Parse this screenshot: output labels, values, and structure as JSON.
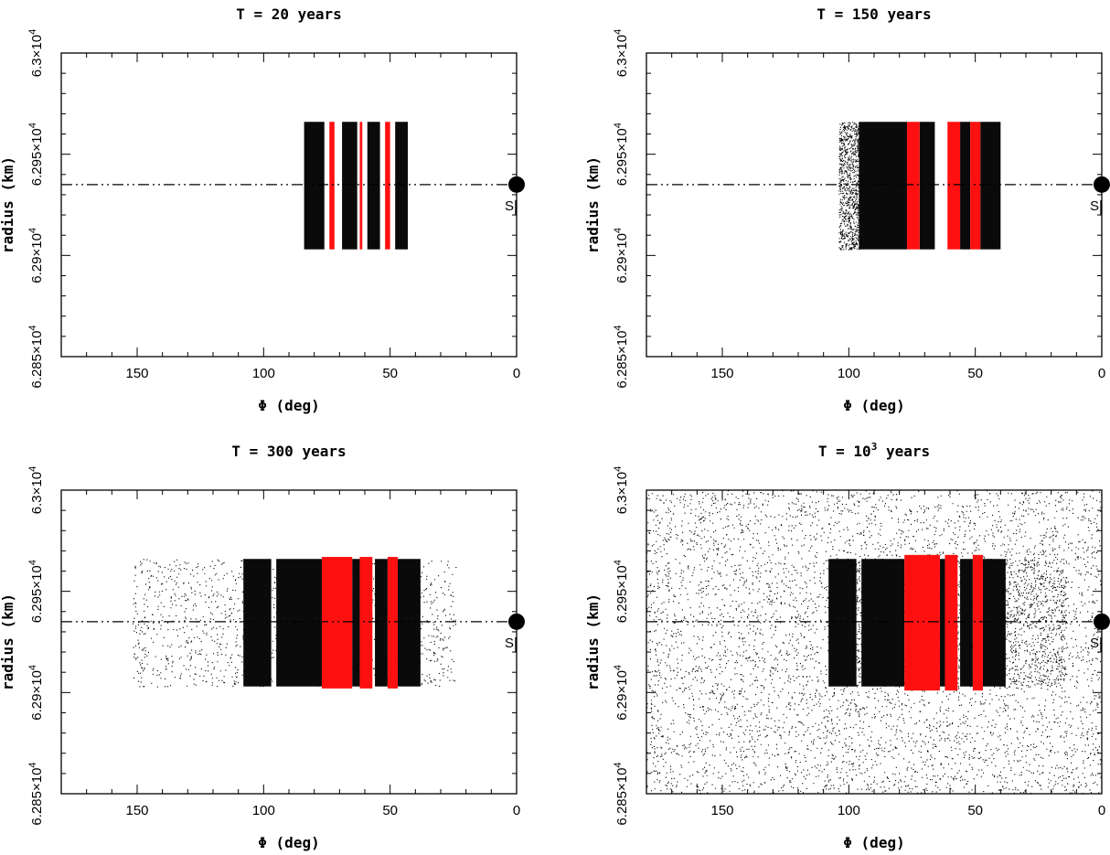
{
  "chart_data": [
    {
      "type": "scatter",
      "title": "T = 20 years",
      "title_base": "",
      "title_exp": "",
      "xlabel": "Φ (deg)",
      "ylabel": "radius (km)",
      "xlim": [
        180,
        0
      ],
      "x_reversed": true,
      "ylim": [
        62850,
        63000
      ],
      "xticks": [
        "150",
        "100",
        "50",
        "0"
      ],
      "xtick_values": [
        150,
        100,
        50,
        0
      ],
      "yticks": [
        {
          "value": 62850,
          "mant": "6.285",
          "exp": "4"
        },
        {
          "value": 62900,
          "mant": "6.29",
          "exp": "4"
        },
        {
          "value": 62950,
          "mant": "6.295",
          "exp": "4"
        },
        {
          "value": 63000,
          "mant": "6.3",
          "exp": "4"
        }
      ],
      "reference_line_radius": 62935,
      "satellite": {
        "label": "S",
        "phi": 0,
        "radius": 62935
      },
      "black_bands": [
        [
          84,
          76
        ],
        [
          69,
          63
        ],
        [
          59,
          54
        ],
        [
          48,
          43
        ]
      ],
      "red_bands": [
        [
          74,
          72
        ],
        [
          62,
          61
        ],
        [
          52,
          50
        ]
      ],
      "band_radius": [
        62903,
        62966
      ],
      "halo_density": 0,
      "background_density": 0
    },
    {
      "type": "scatter",
      "title": "T = 150 years",
      "title_base": "",
      "title_exp": "",
      "xlabel": "Φ (deg)",
      "ylabel": "radius (km)",
      "xlim": [
        180,
        0
      ],
      "x_reversed": true,
      "ylim": [
        62850,
        63000
      ],
      "xticks": [
        "150",
        "100",
        "50",
        "0"
      ],
      "xtick_values": [
        150,
        100,
        50,
        0
      ],
      "yticks": [
        {
          "value": 62850,
          "mant": "6.285",
          "exp": "4"
        },
        {
          "value": 62900,
          "mant": "6.29",
          "exp": "4"
        },
        {
          "value": 62950,
          "mant": "6.295",
          "exp": "4"
        },
        {
          "value": 63000,
          "mant": "6.3",
          "exp": "4"
        }
      ],
      "reference_line_radius": 62935,
      "satellite": {
        "label": "S",
        "phi": 0,
        "radius": 62935
      },
      "black_bands": [
        [
          96,
          77
        ],
        [
          72,
          66
        ],
        [
          56,
          52
        ],
        [
          48,
          40
        ]
      ],
      "red_bands": [
        [
          77,
          72
        ],
        [
          61,
          56
        ],
        [
          52,
          48
        ]
      ],
      "band_radius": [
        62903,
        62966
      ],
      "halo": [
        104,
        96
      ],
      "halo_density": 900,
      "background_density": 0
    },
    {
      "type": "scatter",
      "title": "T = 300 years",
      "title_base": "",
      "title_exp": "",
      "xlabel": "Φ (deg)",
      "ylabel": "radius (km)",
      "xlim": [
        180,
        0
      ],
      "x_reversed": true,
      "ylim": [
        62850,
        63000
      ],
      "xticks": [
        "150",
        "100",
        "50",
        "0"
      ],
      "xtick_values": [
        150,
        100,
        50,
        0
      ],
      "yticks": [
        {
          "value": 62850,
          "mant": "6.285",
          "exp": "4"
        },
        {
          "value": 62900,
          "mant": "6.29",
          "exp": "4"
        },
        {
          "value": 62950,
          "mant": "6.295",
          "exp": "4"
        },
        {
          "value": 63000,
          "mant": "6.3",
          "exp": "4"
        }
      ],
      "reference_line_radius": 62935,
      "satellite": {
        "label": "S",
        "phi": 0,
        "radius": 62935
      },
      "black_bands": [
        [
          108,
          97
        ],
        [
          95,
          77
        ],
        [
          65,
          62
        ],
        [
          56,
          51
        ],
        [
          47,
          38
        ]
      ],
      "red_bands": [
        [
          77,
          65
        ],
        [
          62,
          57
        ],
        [
          51,
          47
        ]
      ],
      "band_radius": [
        62903,
        62966
      ],
      "halo": [
        152,
        24
      ],
      "halo_density": 1400,
      "background_density": 0
    },
    {
      "type": "scatter",
      "title": "",
      "title_base": "T = 10",
      "title_exp": "3",
      "title_tail": " years",
      "xlabel": "Φ (deg)",
      "ylabel": "radius (km)",
      "xlim": [
        180,
        0
      ],
      "x_reversed": true,
      "ylim": [
        62850,
        63000
      ],
      "xticks": [
        "150",
        "100",
        "50",
        "0"
      ],
      "xtick_values": [
        150,
        100,
        50,
        0
      ],
      "yticks": [
        {
          "value": 62850,
          "mant": "6.285",
          "exp": "4"
        },
        {
          "value": 62900,
          "mant": "6.29",
          "exp": "4"
        },
        {
          "value": 62950,
          "mant": "6.295",
          "exp": "4"
        },
        {
          "value": 63000,
          "mant": "6.3",
          "exp": "4"
        }
      ],
      "reference_line_radius": 62935,
      "satellite": {
        "label": "S",
        "phi": 0,
        "radius": 62935
      },
      "black_bands": [
        [
          108,
          97
        ],
        [
          95,
          78
        ],
        [
          64,
          62
        ],
        [
          56,
          51
        ],
        [
          47,
          38
        ]
      ],
      "red_bands": [
        [
          78,
          64
        ],
        [
          62,
          57
        ],
        [
          51,
          47
        ]
      ],
      "band_radius": [
        62903,
        62966
      ],
      "halo": [
        108,
        14
      ],
      "halo_density": 2400,
      "background_density": 9000
    }
  ]
}
